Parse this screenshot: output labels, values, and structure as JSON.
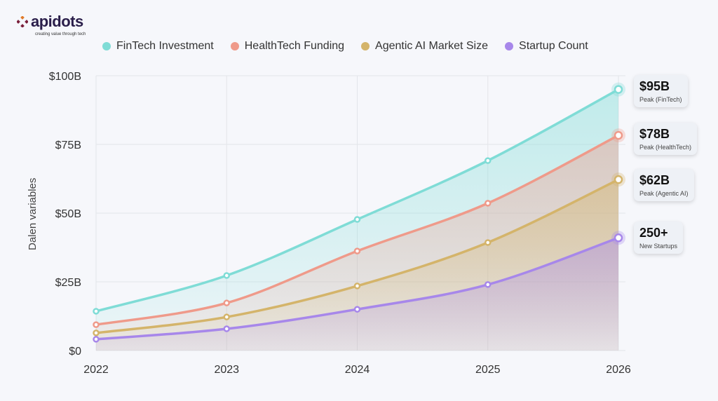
{
  "logo": {
    "name": "apidots",
    "tagline": "creating value through tech"
  },
  "chart_data": {
    "type": "area",
    "title": "",
    "xlabel": "",
    "ylabel": "Dalen variables",
    "x": [
      "2022",
      "2023",
      "2024",
      "2025",
      "2026"
    ],
    "ylim": [
      0,
      100
    ],
    "yticks": [
      "$0",
      "$25B",
      "$50B",
      "$75B",
      "$100B"
    ],
    "grid": true,
    "legend_placement": "top",
    "series": [
      {
        "name": "FinTech Investment",
        "color": "#7fdcd6",
        "values": [
          14.3,
          27.3,
          47.7,
          69.1,
          95
        ]
      },
      {
        "name": "HealthTech Funding",
        "color": "#ef9a8a",
        "values": [
          9.4,
          17.3,
          36.2,
          53.6,
          78.3
        ]
      },
      {
        "name": "Agentic AI Market Size",
        "color": "#d4b46a",
        "values": [
          6.4,
          12.2,
          23.5,
          39.3,
          62.2
        ]
      },
      {
        "name": "Startup Count",
        "color": "#a787ea",
        "values": [
          4.1,
          7.9,
          15,
          24,
          41
        ]
      }
    ]
  },
  "callouts": [
    {
      "value": "$95B",
      "label": "Peak (FinTech)"
    },
    {
      "value": "$78B",
      "label": "Peak (HealthTech)"
    },
    {
      "value": "$62B",
      "label": "Peak (Agentic AI)"
    },
    {
      "value": "250+",
      "label": "New Startups"
    }
  ]
}
